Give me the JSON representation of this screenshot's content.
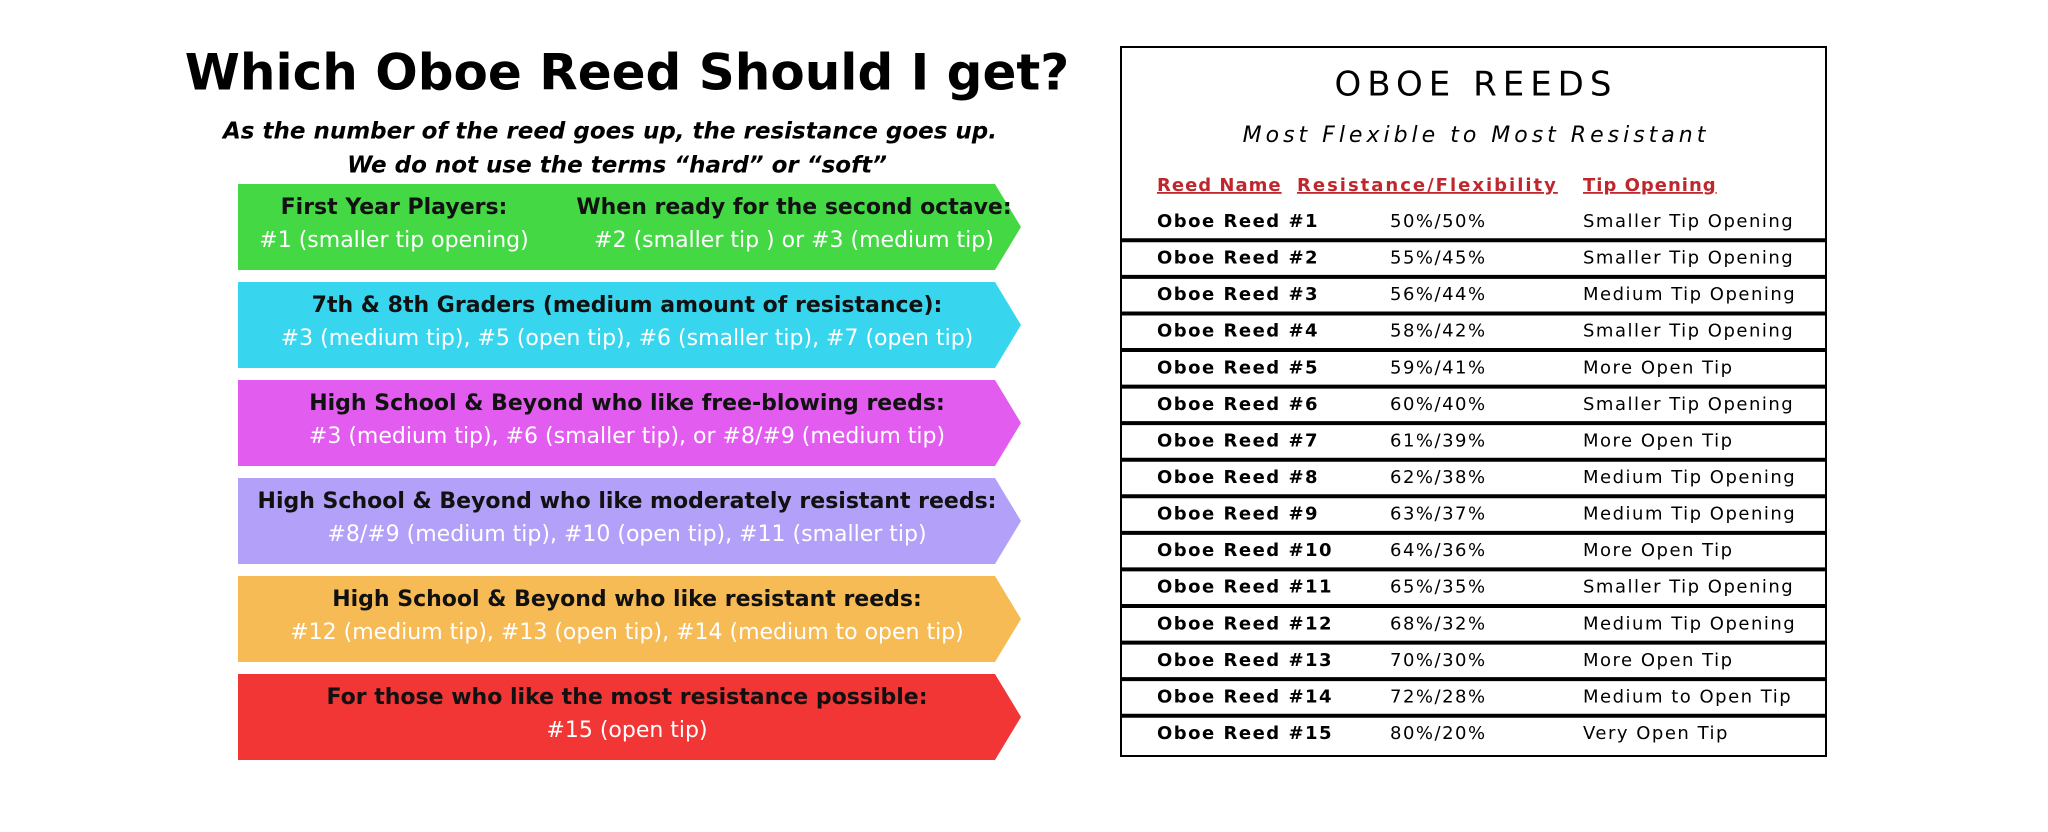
{
  "left": {
    "title": "Which Oboe Reed Should I get?",
    "subtitle": [
      "As the number of the reed goes up, the resistance goes up.",
      "We do not use the terms “hard” or “soft”"
    ],
    "banners": [
      {
        "columns": [
          [
            "First Year Players:",
            "#1 (smaller tip opening)"
          ],
          [
            "When ready for the second octave:",
            "#2 (smaller tip ) or #3 (medium tip)"
          ]
        ]
      },
      {
        "lines": [
          "7th & 8th Graders (medium amount of resistance):",
          "#3 (medium tip), #5 (open tip), #6 (smaller tip), #7 (open tip)"
        ]
      },
      {
        "lines": [
          "High School & Beyond who like free-blowing reeds:",
          "#3 (medium tip), #6 (smaller tip), or #8/#9 (medium tip)"
        ]
      },
      {
        "lines": [
          "High School & Beyond who like moderately resistant reeds:",
          "#8/#9 (medium tip), #10 (open tip), #11 (smaller tip)"
        ]
      },
      {
        "lines": [
          "High School & Beyond who like resistant reeds:",
          "#12 (medium tip), #13 (open tip), #14 (medium to open tip)"
        ]
      },
      {
        "lines": [
          "For those who like the most resistance possible:",
          "#15 (open tip)"
        ]
      }
    ]
  },
  "table": {
    "title": "OBOE REEDS",
    "subtitle": "Most Flexible to Most Resistant",
    "headers": [
      "Reed Name",
      "Resistance/Flexibility",
      "Tip Opening"
    ],
    "rows": [
      [
        "Oboe Reed #1",
        "50%/50%",
        "Smaller Tip Opening"
      ],
      [
        "Oboe Reed #2",
        "55%/45%",
        "Smaller Tip Opening"
      ],
      [
        "Oboe Reed #3",
        "56%/44%",
        "Medium Tip Opening"
      ],
      [
        "Oboe Reed #4",
        "58%/42%",
        "Smaller Tip Opening"
      ],
      [
        "Oboe Reed #5",
        "59%/41%",
        "More Open Tip"
      ],
      [
        "Oboe Reed #6",
        "60%/40%",
        "Smaller Tip Opening"
      ],
      [
        "Oboe Reed #7",
        "61%/39%",
        "More Open Tip"
      ],
      [
        "Oboe Reed #8",
        "62%/38%",
        "Medium Tip Opening"
      ],
      [
        "Oboe Reed #9",
        "63%/37%",
        "Medium Tip Opening"
      ],
      [
        "Oboe Reed #10",
        "64%/36%",
        "More Open Tip"
      ],
      [
        "Oboe Reed #11",
        "65%/35%",
        "Smaller Tip Opening"
      ],
      [
        "Oboe Reed #12",
        "68%/32%",
        "Medium Tip Opening"
      ],
      [
        "Oboe Reed #13",
        "70%/30%",
        "More Open Tip"
      ],
      [
        "Oboe Reed #14",
        "72%/28%",
        "Medium to Open Tip"
      ],
      [
        "Oboe Reed #15",
        "80%/20%",
        "Very Open Tip"
      ]
    ]
  }
}
